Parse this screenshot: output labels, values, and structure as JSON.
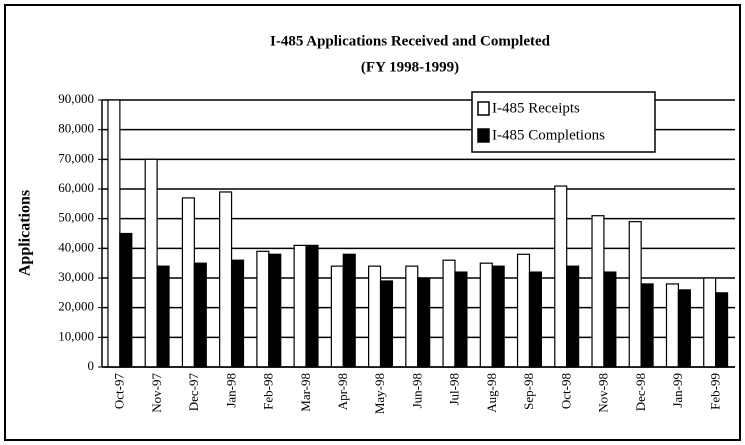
{
  "chart_data": {
    "type": "bar",
    "title": "I-485 Applications Received and Completed",
    "subtitle": "(FY 1998-1999)",
    "y_label": "Applications",
    "categories": [
      "Oct-97",
      "Nov-97",
      "Dec-97",
      "Jan-98",
      "Feb-98",
      "Mar-98",
      "Apr-98",
      "May-98",
      "Jun-98",
      "Jul-98",
      "Aug-98",
      "Sep-98",
      "Oct-98",
      "Nov-98",
      "Dec-98",
      "Jan-99",
      "Feb-99"
    ],
    "series": [
      {
        "name": "I-485 Receipts",
        "color": "#ffffff",
        "values": [
          90000,
          70000,
          57000,
          59000,
          39000,
          41000,
          34000,
          34000,
          34000,
          36000,
          35000,
          38000,
          61000,
          51000,
          49000,
          28000,
          30000
        ]
      },
      {
        "name": "I-485 Completions",
        "color": "#000000",
        "values": [
          45000,
          34000,
          35000,
          36000,
          38000,
          41000,
          38000,
          29000,
          30000,
          32000,
          34000,
          32000,
          34000,
          32000,
          28000,
          26000,
          25000
        ]
      }
    ],
    "ylim": [
      0,
      90000
    ],
    "yticks": [
      0,
      {
        "value": 10000,
        "label": "10,000"
      },
      {
        "value": 20000,
        "label": "20,000"
      },
      {
        "value": 30000,
        "label": "30,000"
      },
      {
        "value": 40000,
        "label": "40,000"
      },
      {
        "value": 50000,
        "label": "50,000"
      },
      {
        "value": 60000,
        "label": "60,000"
      },
      {
        "value": 70000,
        "label": "70,000"
      },
      {
        "value": 80000,
        "label": "80,000"
      },
      {
        "value": 90000,
        "label": "90,000"
      }
    ],
    "grid": true,
    "legend": "upper right"
  }
}
